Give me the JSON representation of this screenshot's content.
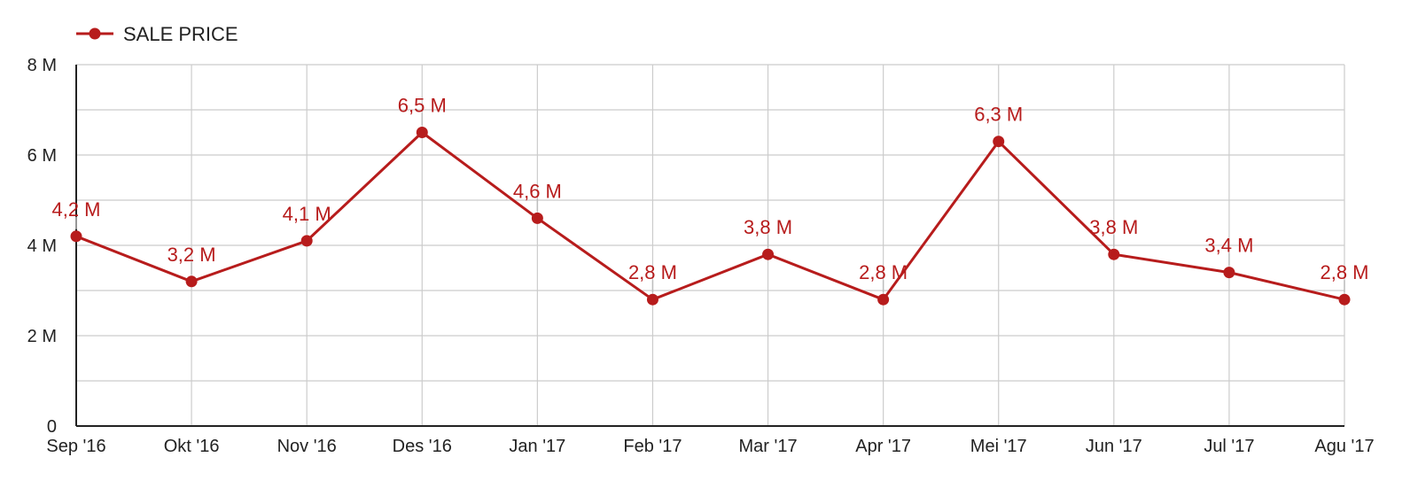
{
  "chart_data": {
    "type": "line",
    "title": "",
    "xlabel": "",
    "ylabel": "",
    "categories": [
      "Sep '16",
      "Okt '16",
      "Nov '16",
      "Des '16",
      "Jan '17",
      "Feb '17",
      "Mar '17",
      "Apr '17",
      "Mei '17",
      "Jun '17",
      "Jul '17",
      "Agu '17"
    ],
    "series": [
      {
        "name": "SALE PRICE",
        "color": "#b71c1c",
        "values": [
          4.2,
          3.2,
          4.1,
          6.5,
          4.6,
          2.8,
          3.8,
          2.8,
          6.3,
          3.8,
          3.4,
          2.8
        ],
        "value_labels": [
          "4,2 M",
          "3,2 M",
          "4,1 M",
          "6,5 M",
          "4,6 M",
          "2,8 M",
          "3,8 M",
          "2,8 M",
          "6,3 M",
          "3,8 M",
          "3,4 M",
          "2,8 M"
        ]
      }
    ],
    "ylim": [
      0,
      8
    ],
    "y_unit": "M",
    "y_ticks": [
      {
        "value": 0,
        "label": "0"
      },
      {
        "value": 2,
        "label": "2 M"
      },
      {
        "value": 4,
        "label": "4 M"
      },
      {
        "value": 6,
        "label": "6 M"
      },
      {
        "value": 8,
        "label": "8 M"
      }
    ],
    "y_minor_ticks": [
      1,
      3,
      5,
      7
    ],
    "grid": true,
    "legend_position": "top-left",
    "axis_color": "#222222",
    "grid_color": "#cccccc"
  }
}
